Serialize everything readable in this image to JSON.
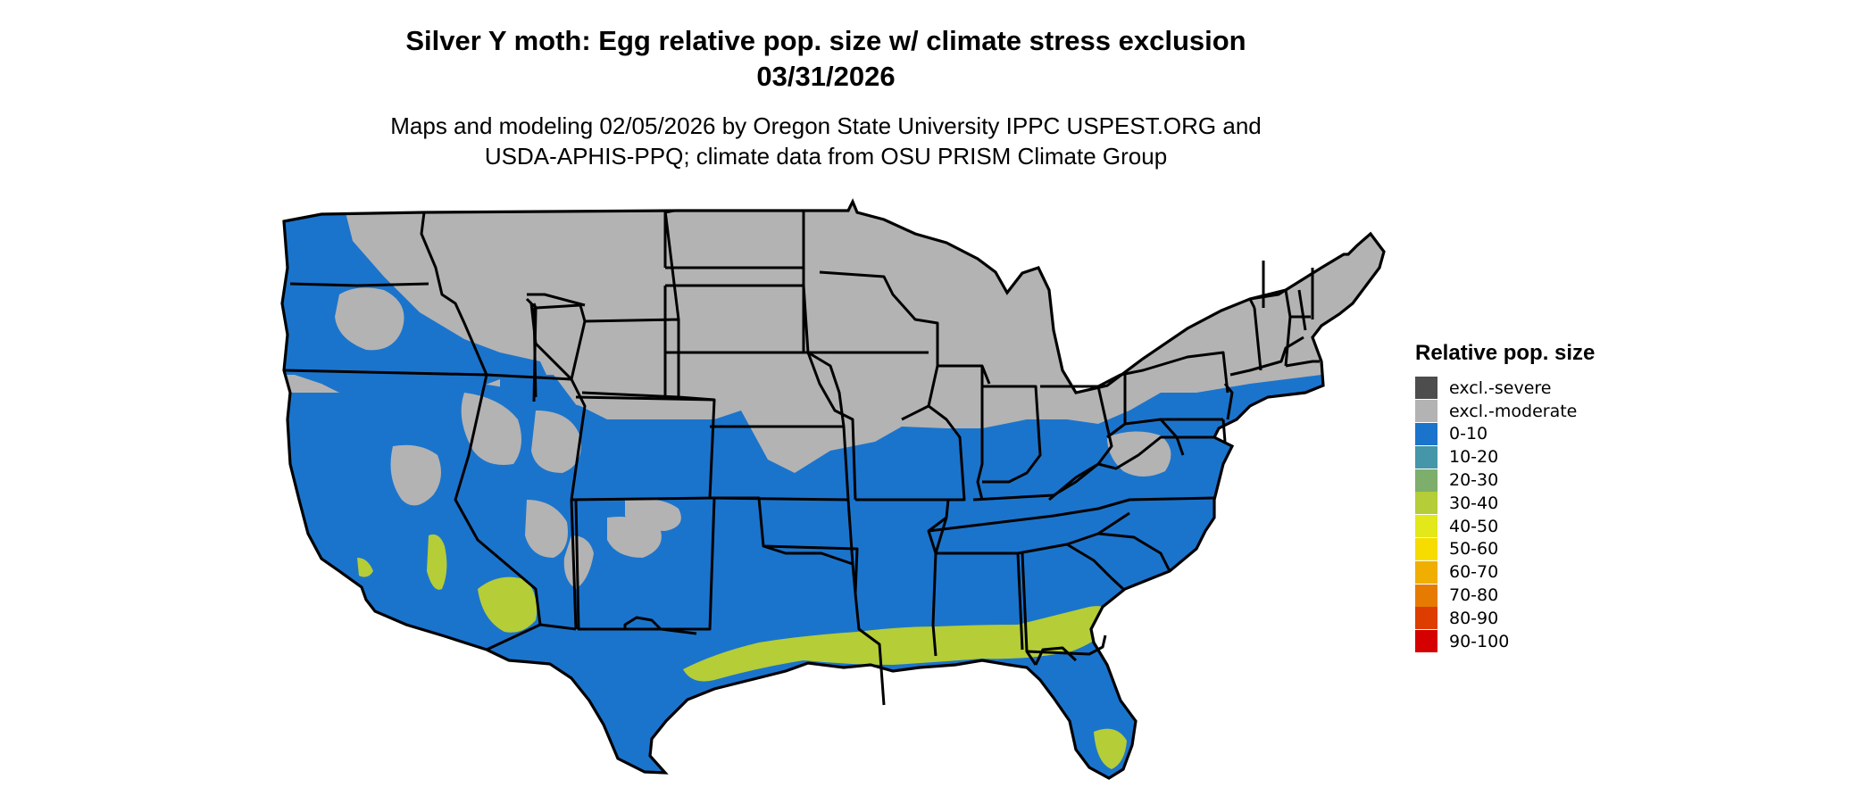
{
  "title": {
    "line1": "Silver Y moth: Egg relative pop. size w/ climate stress exclusion",
    "line2": "03/31/2026"
  },
  "subtitle": {
    "line1": "Maps and modeling 02/05/2026 by Oregon State University IPPC USPEST.ORG and",
    "line2": "USDA-APHIS-PPQ; climate data from OSU PRISM Climate Group"
  },
  "colors": {
    "excluded_moderate": "#b3b3b3",
    "low": "#1b74cc",
    "mid": "#b5cd37",
    "border": "#000000"
  },
  "legend": {
    "title": "Relative pop. size",
    "items": [
      {
        "label": "excl.-severe",
        "color": "#4d4d4d"
      },
      {
        "label": "excl.-moderate",
        "color": "#b3b3b3"
      },
      {
        "label": "0-10",
        "color": "#1b74cc"
      },
      {
        "label": "10-20",
        "color": "#4496a8"
      },
      {
        "label": "20-30",
        "color": "#7dae6c"
      },
      {
        "label": "30-40",
        "color": "#b5cd37"
      },
      {
        "label": "40-50",
        "color": "#e3e81a"
      },
      {
        "label": "50-60",
        "color": "#f7dc00"
      },
      {
        "label": "60-70",
        "color": "#f0ae00"
      },
      {
        "label": "70-80",
        "color": "#e77a00"
      },
      {
        "label": "80-90",
        "color": "#dd3d00"
      },
      {
        "label": "90-100",
        "color": "#d50000"
      }
    ]
  }
}
